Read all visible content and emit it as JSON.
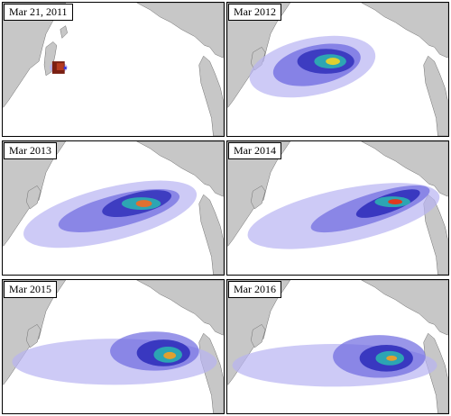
{
  "colors": {
    "land": "#c7c7c7",
    "ocean": "#ffffff",
    "debris_low": "#b8b3f2",
    "debris_mid": "#3a3ad6",
    "debris_high": "#e03a1e"
  },
  "panels": [
    {
      "label": "Mar 21, 2011",
      "icon": "debris-map-icon"
    },
    {
      "label": "Mar 2012",
      "icon": "debris-map-icon"
    },
    {
      "label": "Mar 2013",
      "icon": "debris-map-icon"
    },
    {
      "label": "Mar 2014",
      "icon": "debris-map-icon"
    },
    {
      "label": "Mar 2015",
      "icon": "debris-map-icon"
    },
    {
      "label": "Mar 2016",
      "icon": "debris-map-icon"
    }
  ]
}
